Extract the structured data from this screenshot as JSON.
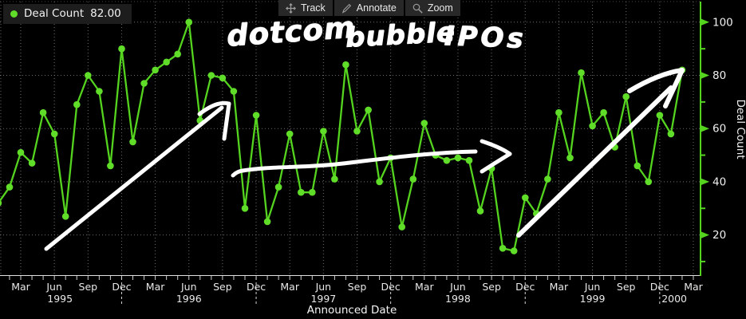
{
  "theme": {
    "background": "#000000",
    "series_green": "#55d41f",
    "point_green": "#60dd29",
    "grid_gray": "#8f8f8f",
    "axis_text": "#e8e8e8",
    "annotation_white": "#ffffff",
    "panel_bg": "#1d1d1d",
    "toolbar_bg": "#282828",
    "icon_gray": "#9c9c9c"
  },
  "legend": {
    "series_label": "Deal Count",
    "value": "82.00"
  },
  "toolbar": {
    "items": [
      {
        "label": "Track",
        "icon": "track-crosshair-icon"
      },
      {
        "label": "Annotate",
        "icon": "annotate-pencil-icon"
      },
      {
        "label": "Zoom",
        "icon": "zoom-magnifier-icon"
      }
    ]
  },
  "annotations": {
    "text": {
      "full": "dotcom bubble IPOs",
      "words": [
        "dotcom",
        "bubble",
        "IPOs"
      ]
    },
    "arrows": [
      {
        "name": "rising-arrow-1995-1996",
        "width": 5,
        "paths": [
          "M58 312 L278 135",
          "M250 143 Q272 126 287 130",
          "M287 130 L281 174"
        ]
      },
      {
        "name": "flat-arrow-1997-1998",
        "width": 5,
        "paths": [
          "M292 220 Q297 215 304 214 C340 208 380 211 430 205 C480 199 542 191 596 190",
          "M604 177 Q628 185 639 193",
          "M639 193 Q621 204 604 215"
        ]
      },
      {
        "name": "rising-arrow-1999-2000",
        "width": 6,
        "paths": [
          "M650 295 L841 110",
          "M789 114 Q826 92 855 88",
          "M855 88 L834 133"
        ]
      }
    ]
  },
  "axes": {
    "y": {
      "title": "Deal Count",
      "major_ticks": [
        20,
        40,
        60,
        80,
        100
      ],
      "minor_ticks": [
        10,
        30,
        50,
        70,
        90
      ]
    },
    "x": {
      "title": "Announced Date",
      "quarter_label_names": [
        "Mar",
        "Jun",
        "Sep",
        "Dec"
      ],
      "year_labels": [
        {
          "label": "1995",
          "month_index": 5.5
        },
        {
          "label": "1996",
          "month_index": 17
        },
        {
          "label": "1997",
          "month_index": 29
        },
        {
          "label": "1998",
          "month_index": 41
        },
        {
          "label": "1999",
          "month_index": 53
        },
        {
          "label": "2000",
          "month_index": 60.3
        }
      ],
      "year_separator_month_indices": [
        11,
        23,
        35,
        47,
        59
      ]
    }
  },
  "chart_data": {
    "type": "line",
    "title": "dotcom bubble IPOs (hand annotation)",
    "xlabel": "Announced Date",
    "ylabel": "Deal Count",
    "ylim": [
      0,
      105
    ],
    "x_frequency": "monthly",
    "x_start": "1995-01",
    "x_end": "2000-02",
    "grid": "dotted, vertical each quarter, horizontal every 20",
    "legend_position": "top-left",
    "last_value_shown_in_legend": 82,
    "categories": [
      "1995-01",
      "1995-02",
      "1995-03",
      "1995-04",
      "1995-05",
      "1995-06",
      "1995-07",
      "1995-08",
      "1995-09",
      "1995-10",
      "1995-11",
      "1995-12",
      "1996-01",
      "1996-02",
      "1996-03",
      "1996-04",
      "1996-05",
      "1996-06",
      "1996-07",
      "1996-08",
      "1996-09",
      "1996-10",
      "1996-11",
      "1996-12",
      "1997-01",
      "1997-02",
      "1997-03",
      "1997-04",
      "1997-05",
      "1997-06",
      "1997-07",
      "1997-08",
      "1997-09",
      "1997-10",
      "1997-11",
      "1997-12",
      "1998-01",
      "1998-02",
      "1998-03",
      "1998-04",
      "1998-05",
      "1998-06",
      "1998-07",
      "1998-08",
      "1998-09",
      "1998-10",
      "1998-11",
      "1998-12",
      "1999-01",
      "1999-02",
      "1999-03",
      "1999-04",
      "1999-05",
      "1999-06",
      "1999-07",
      "1999-08",
      "1999-09",
      "1999-10",
      "1999-11",
      "1999-12",
      "2000-01",
      "2000-02"
    ],
    "series": [
      {
        "name": "Deal Count",
        "values": [
          32,
          38,
          51,
          47,
          66,
          58,
          27,
          69,
          80,
          74,
          46,
          90,
          55,
          77,
          82,
          85,
          88,
          100,
          63,
          80,
          79,
          74,
          30,
          65,
          25,
          38,
          58,
          36,
          36,
          59,
          41,
          84,
          59,
          67,
          40,
          49,
          23,
          41,
          62,
          50,
          48,
          49,
          48,
          29,
          45,
          15,
          14,
          34,
          28,
          41,
          66,
          49,
          81,
          61,
          66,
          53,
          72,
          46,
          40,
          65,
          58,
          82
        ]
      }
    ]
  }
}
